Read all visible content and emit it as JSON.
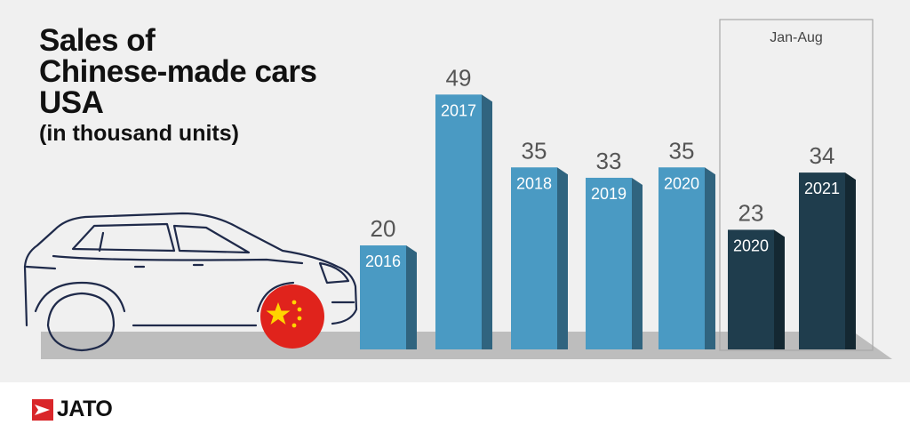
{
  "chart_data": {
    "type": "bar",
    "title_lines": [
      "Sales of",
      "Chinese-made cars",
      "USA"
    ],
    "subtitle": "(in thousand units)",
    "categories": [
      "2016",
      "2017",
      "2018",
      "2019",
      "2020",
      "2020",
      "2021"
    ],
    "values": [
      20,
      49,
      35,
      33,
      35,
      23,
      34
    ],
    "highlight_group": {
      "label": "Jan-Aug",
      "categories": [
        "2020",
        "2021"
      ]
    },
    "colors": {
      "annual_bar": "#4a9ac3",
      "jan_aug_bar": "#1f3d4d",
      "value_label": "#555555"
    },
    "grid": false
  },
  "brand": {
    "logo_text": "JATO",
    "logo_color": "#d9262a"
  },
  "decor": {
    "car_icon": "car-outline-icon",
    "flag_icon": "china-flag-icon"
  }
}
